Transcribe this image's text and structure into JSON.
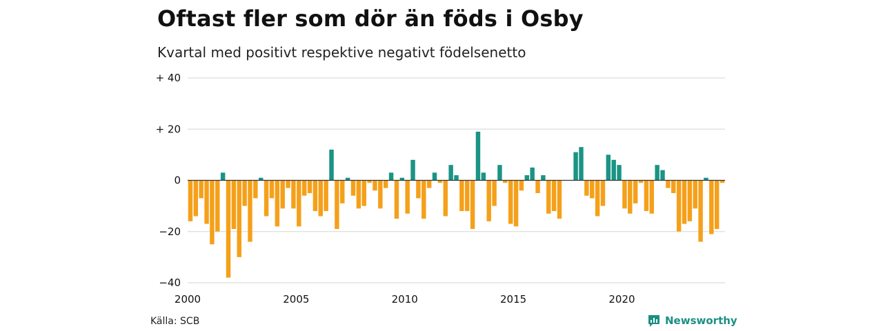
{
  "title": "Oftast fler som dör än föds i Osby",
  "subtitle": "Kvartal med positivt respektive negativt födelsenetto",
  "source": "Källa: SCB",
  "brand": "Newsworthy",
  "colors": {
    "positive": "#1a9485",
    "negative": "#f5a01a",
    "grid": "#dddddd",
    "zero": "#333333",
    "brand": "#1b8f83"
  },
  "chart_data": {
    "type": "bar",
    "title": "Oftast fler som dör än föds i Osby",
    "subtitle": "Kvartal med positivt respektive negativt födelsenetto",
    "xlabel": "",
    "ylabel": "",
    "ylim": [
      -40,
      40
    ],
    "yticks": [
      40,
      20,
      0,
      -20,
      -40
    ],
    "ytick_labels": [
      "+ 40",
      "+ 20",
      "0",
      "−20",
      "−40"
    ],
    "xticks": [
      2000,
      2005,
      2010,
      2015,
      2020
    ],
    "xtick_labels": [
      "2000",
      "2005",
      "2010",
      "2015",
      "2020"
    ],
    "xlim": [
      2000,
      2024.75
    ],
    "start_year": 2000,
    "grid": true,
    "legend": "none",
    "values": [
      -16,
      -14,
      -7,
      -17,
      -25,
      -20,
      3,
      -38,
      -19,
      -30,
      -10,
      -24,
      -7,
      1,
      -14,
      -7,
      -18,
      -11,
      -3,
      -11,
      -18,
      -6,
      -5,
      -12,
      -14,
      -12,
      12,
      -19,
      -9,
      1,
      -6,
      -11,
      -10,
      -1,
      -4,
      -11,
      -3,
      3,
      -15,
      1,
      -13,
      8,
      -7,
      -15,
      -3,
      3,
      -1,
      -14,
      6,
      2,
      -12,
      -12,
      -19,
      19,
      3,
      -16,
      -10,
      6,
      -1,
      -17,
      -18,
      -4,
      2,
      5,
      -5,
      2,
      -13,
      -12,
      -15,
      0,
      0,
      11,
      13,
      -6,
      -7,
      -14,
      -10,
      10,
      8,
      6,
      -11,
      -13,
      -9,
      -1,
      -12,
      -13,
      6,
      4,
      -3,
      -5,
      -20,
      -17,
      -16,
      -11,
      -24,
      1,
      -21,
      -19,
      -1
    ]
  }
}
